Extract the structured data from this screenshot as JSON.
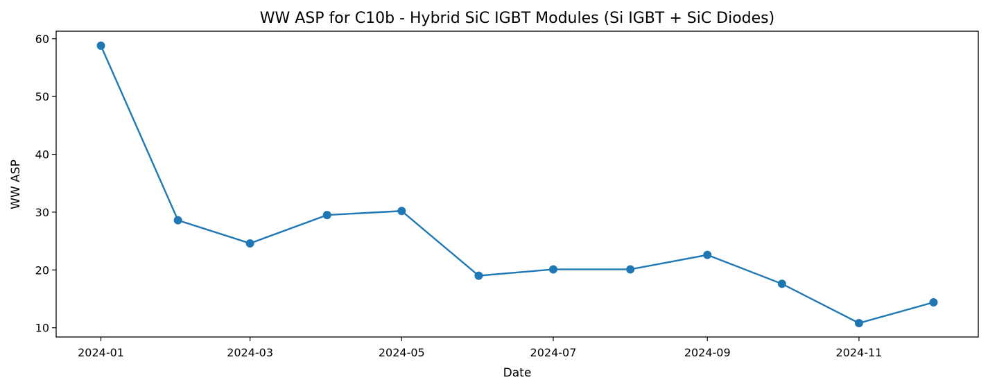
{
  "chart_data": {
    "type": "line",
    "title": "WW ASP for C10b - Hybrid SiC IGBT Modules (Si IGBT + SiC Diodes)",
    "xlabel": "Date",
    "ylabel": "WW ASP",
    "x": [
      "2024-01-01",
      "2024-02-01",
      "2024-03-01",
      "2024-04-01",
      "2024-05-01",
      "2024-06-01",
      "2024-07-01",
      "2024-08-01",
      "2024-09-01",
      "2024-10-01",
      "2024-11-01",
      "2024-12-01"
    ],
    "series": [
      {
        "values": [
          58.8,
          28.6,
          24.6,
          29.5,
          30.2,
          19.0,
          20.1,
          20.1,
          22.6,
          17.6,
          10.8,
          14.4
        ],
        "color": "#1f77b4",
        "marker": "circle"
      }
    ],
    "xlim": [
      "2023-12-14",
      "2024-12-19"
    ],
    "ylim": [
      8.4,
      61.3
    ],
    "x_ticks": [
      "2024-01-01",
      "2024-03-01",
      "2024-05-01",
      "2024-07-01",
      "2024-09-01",
      "2024-11-01"
    ],
    "x_tick_labels": [
      "2024-01",
      "2024-03",
      "2024-05",
      "2024-07",
      "2024-09",
      "2024-11"
    ],
    "y_ticks": [
      10,
      20,
      30,
      40,
      50,
      60
    ],
    "grid": false,
    "legend": "none"
  }
}
